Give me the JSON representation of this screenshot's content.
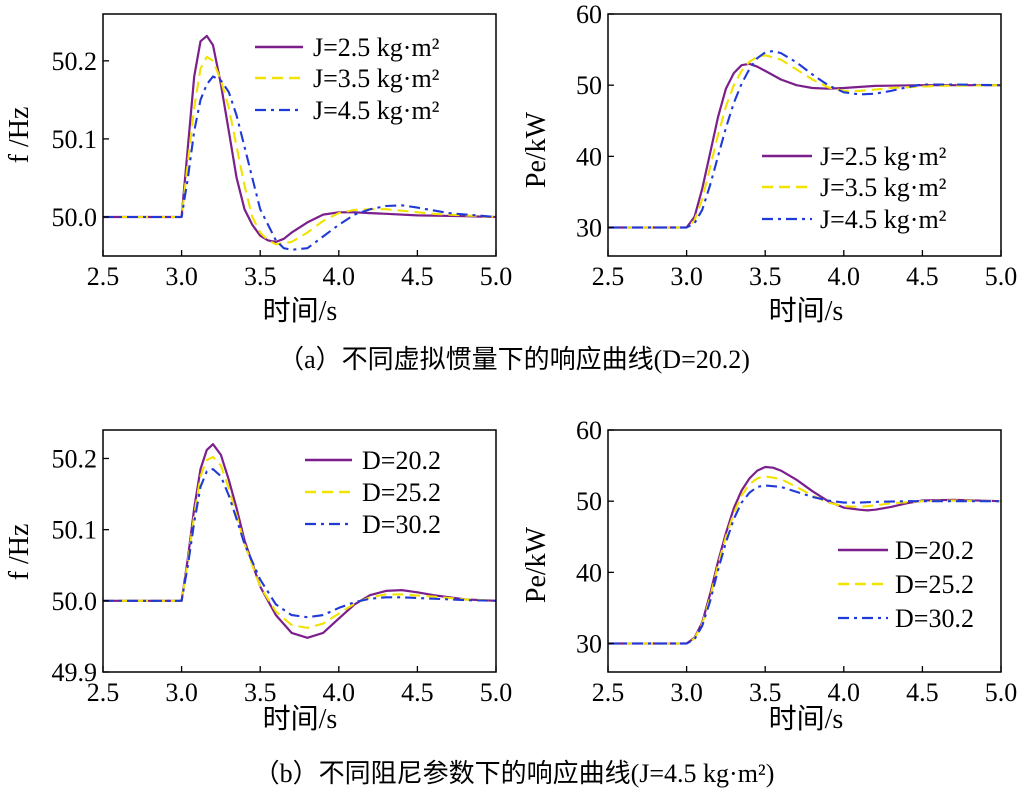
{
  "figure": {
    "caption_a": "（a）不同虚拟惯量下的响应曲线(D=20.2)",
    "caption_b": "（b）不同阻尼参数下的响应曲线(J=4.5 kg·m²)"
  },
  "styles": {
    "purple": "#7b1f8c",
    "yellow": "#f2e200",
    "blue": "#1f3ad6"
  },
  "chart_data": [
    {
      "id": "a-freq",
      "type": "line",
      "xlabel": "时间/s",
      "ylabel": "f /Hz",
      "xlim": [
        2.5,
        5.0
      ],
      "ylim": [
        49.95,
        50.26
      ],
      "xticks": [
        2.5,
        3.0,
        3.5,
        4.0,
        4.5,
        5.0
      ],
      "yticks": [
        50.0,
        50.1,
        50.2
      ],
      "ytick_labels": [
        "50.0",
        "50.1",
        "50.2"
      ],
      "legend_position": "top-right",
      "series": [
        {
          "name": "J=2.5 kg·m²",
          "style": "solid",
          "color": "#7b1f8c",
          "x": [
            2.5,
            3.0,
            3.04,
            3.08,
            3.12,
            3.16,
            3.2,
            3.25,
            3.3,
            3.35,
            3.4,
            3.45,
            3.5,
            3.55,
            3.6,
            3.65,
            3.7,
            3.8,
            3.9,
            4.0,
            4.1,
            4.2,
            4.3,
            4.5,
            4.8,
            5.0
          ],
          "y": [
            50.0,
            50.0,
            50.09,
            50.18,
            50.225,
            50.232,
            50.22,
            50.17,
            50.11,
            50.05,
            50.01,
            49.99,
            49.976,
            49.97,
            49.968,
            49.972,
            49.98,
            49.993,
            50.003,
            50.006,
            50.006,
            50.005,
            50.004,
            50.002,
            50.001,
            50.0
          ]
        },
        {
          "name": "J=3.5 kg·m²",
          "style": "dashed",
          "color": "#f2e200",
          "x": [
            2.5,
            3.0,
            3.04,
            3.08,
            3.12,
            3.16,
            3.2,
            3.25,
            3.3,
            3.35,
            3.4,
            3.45,
            3.5,
            3.55,
            3.6,
            3.7,
            3.8,
            3.9,
            4.0,
            4.1,
            4.2,
            4.3,
            4.4,
            4.6,
            4.8,
            5.0
          ],
          "y": [
            50.0,
            50.0,
            50.07,
            50.14,
            50.19,
            50.205,
            50.2,
            50.175,
            50.14,
            50.09,
            50.04,
            50.0,
            49.98,
            49.97,
            49.965,
            49.968,
            49.98,
            49.995,
            50.005,
            50.009,
            50.01,
            50.01,
            50.008,
            50.004,
            50.002,
            50.0
          ]
        },
        {
          "name": "J=4.5 kg·m²",
          "style": "dashdot",
          "color": "#1f3ad6",
          "x": [
            2.5,
            3.0,
            3.04,
            3.08,
            3.12,
            3.16,
            3.2,
            3.25,
            3.3,
            3.35,
            3.4,
            3.45,
            3.5,
            3.6,
            3.65,
            3.7,
            3.8,
            3.9,
            4.0,
            4.1,
            4.2,
            4.3,
            4.4,
            4.5,
            4.7,
            5.0
          ],
          "y": [
            50.0,
            50.0,
            50.05,
            50.11,
            50.15,
            50.17,
            50.18,
            50.175,
            50.16,
            50.13,
            50.09,
            50.05,
            50.01,
            49.97,
            49.96,
            49.958,
            49.96,
            49.975,
            49.99,
            50.003,
            50.01,
            50.014,
            50.015,
            50.012,
            50.005,
            50.0
          ]
        }
      ]
    },
    {
      "id": "a-power",
      "type": "line",
      "xlabel": "时间/s",
      "ylabel": "Pe/kW",
      "xlim": [
        2.5,
        5.0
      ],
      "ylim": [
        26,
        60
      ],
      "xticks": [
        2.5,
        3.0,
        3.5,
        4.0,
        4.5,
        5.0
      ],
      "yticks": [
        30,
        40,
        50,
        60
      ],
      "ytick_labels": [
        "30",
        "40",
        "50",
        "60"
      ],
      "legend_position": "bottom-right",
      "series": [
        {
          "name": "J=2.5 kg·m²",
          "style": "solid",
          "color": "#7b1f8c",
          "x": [
            2.5,
            3.0,
            3.05,
            3.1,
            3.15,
            3.2,
            3.25,
            3.3,
            3.35,
            3.4,
            3.45,
            3.5,
            3.6,
            3.7,
            3.8,
            3.9,
            4.0,
            4.2,
            4.5,
            5.0
          ],
          "y": [
            30.0,
            30.0,
            31.5,
            35.5,
            40.5,
            45.5,
            49.5,
            51.7,
            52.8,
            53.0,
            52.6,
            52.0,
            50.8,
            50.0,
            49.6,
            49.5,
            49.6,
            49.9,
            50.0,
            50.0
          ]
        },
        {
          "name": "J=3.5 kg·m²",
          "style": "dashed",
          "color": "#f2e200",
          "x": [
            2.5,
            3.0,
            3.05,
            3.1,
            3.15,
            3.2,
            3.25,
            3.3,
            3.35,
            3.4,
            3.45,
            3.5,
            3.6,
            3.7,
            3.8,
            3.9,
            4.0,
            4.1,
            4.3,
            4.6,
            5.0
          ],
          "y": [
            30.0,
            30.0,
            31.0,
            34.0,
            38.5,
            43.0,
            47.0,
            50.0,
            52.0,
            53.3,
            54.0,
            54.2,
            53.6,
            52.2,
            50.8,
            49.7,
            49.2,
            49.2,
            49.6,
            49.9,
            50.0
          ]
        },
        {
          "name": "J=4.5 kg·m²",
          "style": "dashdot",
          "color": "#1f3ad6",
          "x": [
            2.5,
            3.0,
            3.05,
            3.1,
            3.15,
            3.2,
            3.25,
            3.3,
            3.35,
            3.4,
            3.45,
            3.5,
            3.55,
            3.6,
            3.7,
            3.8,
            3.9,
            4.0,
            4.1,
            4.2,
            4.3,
            4.4,
            4.5,
            4.7,
            5.0
          ],
          "y": [
            30.0,
            30.0,
            30.6,
            32.5,
            36.0,
            40.0,
            44.0,
            47.5,
            50.2,
            52.3,
            53.8,
            54.6,
            54.8,
            54.5,
            53.2,
            51.5,
            50.0,
            49.0,
            48.7,
            48.8,
            49.2,
            49.7,
            50.1,
            50.1,
            50.0
          ]
        }
      ]
    },
    {
      "id": "b-freq",
      "type": "line",
      "xlabel": "时间/s",
      "ylabel": "f /Hz",
      "xlim": [
        2.5,
        5.0
      ],
      "ylim": [
        49.9,
        50.24
      ],
      "xticks": [
        2.5,
        3.0,
        3.5,
        4.0,
        4.5,
        5.0
      ],
      "yticks": [
        49.9,
        50.0,
        50.1,
        50.2
      ],
      "ytick_labels": [
        "49.9",
        "50.0",
        "50.1",
        "50.2"
      ],
      "legend_position": "top-right",
      "series": [
        {
          "name": "D=20.2",
          "style": "solid",
          "color": "#7b1f8c",
          "x": [
            2.5,
            3.0,
            3.04,
            3.08,
            3.12,
            3.16,
            3.2,
            3.25,
            3.3,
            3.35,
            3.4,
            3.5,
            3.6,
            3.7,
            3.8,
            3.9,
            4.0,
            4.1,
            4.2,
            4.3,
            4.4,
            4.5,
            4.6,
            4.8,
            5.0
          ],
          "y": [
            50.0,
            50.0,
            50.06,
            50.13,
            50.185,
            50.212,
            50.22,
            50.205,
            50.17,
            50.13,
            50.085,
            50.02,
            49.98,
            49.955,
            49.948,
            49.955,
            49.975,
            49.995,
            50.008,
            50.014,
            50.015,
            50.012,
            50.008,
            50.002,
            50.0
          ]
        },
        {
          "name": "D=25.2",
          "style": "dashed",
          "color": "#f2e200",
          "x": [
            2.5,
            3.0,
            3.04,
            3.08,
            3.12,
            3.16,
            3.2,
            3.25,
            3.3,
            3.35,
            3.4,
            3.5,
            3.6,
            3.7,
            3.8,
            3.9,
            4.0,
            4.1,
            4.2,
            4.3,
            4.4,
            4.6,
            4.8,
            5.0
          ],
          "y": [
            50.0,
            50.0,
            50.055,
            50.12,
            50.175,
            50.198,
            50.202,
            50.19,
            50.158,
            50.12,
            50.08,
            50.02,
            49.985,
            49.966,
            49.962,
            49.968,
            49.982,
            49.996,
            50.005,
            50.009,
            50.009,
            50.006,
            50.002,
            50.0
          ]
        },
        {
          "name": "D=30.2",
          "style": "dashdot",
          "color": "#1f3ad6",
          "x": [
            2.5,
            3.0,
            3.04,
            3.08,
            3.12,
            3.16,
            3.2,
            3.25,
            3.3,
            3.35,
            3.4,
            3.5,
            3.6,
            3.7,
            3.8,
            3.9,
            4.0,
            4.1,
            4.2,
            4.3,
            4.4,
            4.6,
            4.8,
            5.0
          ],
          "y": [
            50.0,
            50.0,
            50.05,
            50.11,
            50.16,
            50.182,
            50.185,
            50.175,
            50.148,
            50.115,
            50.08,
            50.03,
            49.995,
            49.98,
            49.977,
            49.98,
            49.99,
            49.998,
            50.003,
            50.005,
            50.005,
            50.003,
            50.001,
            50.0
          ]
        }
      ]
    },
    {
      "id": "b-power",
      "type": "line",
      "xlabel": "时间/s",
      "ylabel": "Pe/kW",
      "xlim": [
        2.5,
        5.0
      ],
      "ylim": [
        26,
        60
      ],
      "xticks": [
        2.5,
        3.0,
        3.5,
        4.0,
        4.5,
        5.0
      ],
      "yticks": [
        30,
        40,
        50,
        60
      ],
      "ytick_labels": [
        "30",
        "40",
        "50",
        "60"
      ],
      "legend_position": "bottom-right",
      "series": [
        {
          "name": "D=20.2",
          "style": "solid",
          "color": "#7b1f8c",
          "x": [
            2.5,
            3.0,
            3.05,
            3.1,
            3.15,
            3.2,
            3.25,
            3.3,
            3.35,
            3.4,
            3.45,
            3.5,
            3.55,
            3.6,
            3.7,
            3.8,
            3.9,
            4.0,
            4.1,
            4.15,
            4.2,
            4.3,
            4.4,
            4.5,
            4.7,
            5.0
          ],
          "y": [
            30.0,
            30.0,
            30.8,
            33.0,
            37.0,
            41.5,
            45.5,
            49.0,
            51.5,
            53.2,
            54.3,
            54.8,
            54.7,
            54.3,
            53.0,
            51.4,
            50.0,
            49.1,
            48.8,
            48.7,
            48.8,
            49.2,
            49.7,
            50.1,
            50.2,
            50.0
          ]
        },
        {
          "name": "D=25.2",
          "style": "dashed",
          "color": "#f2e200",
          "x": [
            2.5,
            3.0,
            3.05,
            3.1,
            3.15,
            3.2,
            3.25,
            3.3,
            3.35,
            3.4,
            3.45,
            3.5,
            3.6,
            3.7,
            3.8,
            3.9,
            4.0,
            4.1,
            4.2,
            4.3,
            4.5,
            4.7,
            5.0
          ],
          "y": [
            30.0,
            30.0,
            30.7,
            32.8,
            36.5,
            41.0,
            45.0,
            48.3,
            50.8,
            52.4,
            53.2,
            53.5,
            53.1,
            52.0,
            50.8,
            49.8,
            49.3,
            49.2,
            49.4,
            49.7,
            50.0,
            50.1,
            50.0
          ]
        },
        {
          "name": "D=30.2",
          "style": "dashdot",
          "color": "#1f3ad6",
          "x": [
            2.5,
            3.0,
            3.05,
            3.1,
            3.15,
            3.2,
            3.25,
            3.3,
            3.35,
            3.4,
            3.45,
            3.5,
            3.6,
            3.7,
            3.8,
            3.9,
            4.0,
            4.1,
            4.2,
            4.4,
            4.6,
            5.0
          ],
          "y": [
            30.0,
            30.0,
            30.6,
            32.5,
            36.0,
            40.3,
            44.2,
            47.5,
            49.8,
            51.2,
            52.0,
            52.2,
            52.0,
            51.3,
            50.6,
            50.1,
            49.8,
            49.8,
            49.9,
            50.0,
            50.0,
            50.0
          ]
        }
      ]
    }
  ]
}
